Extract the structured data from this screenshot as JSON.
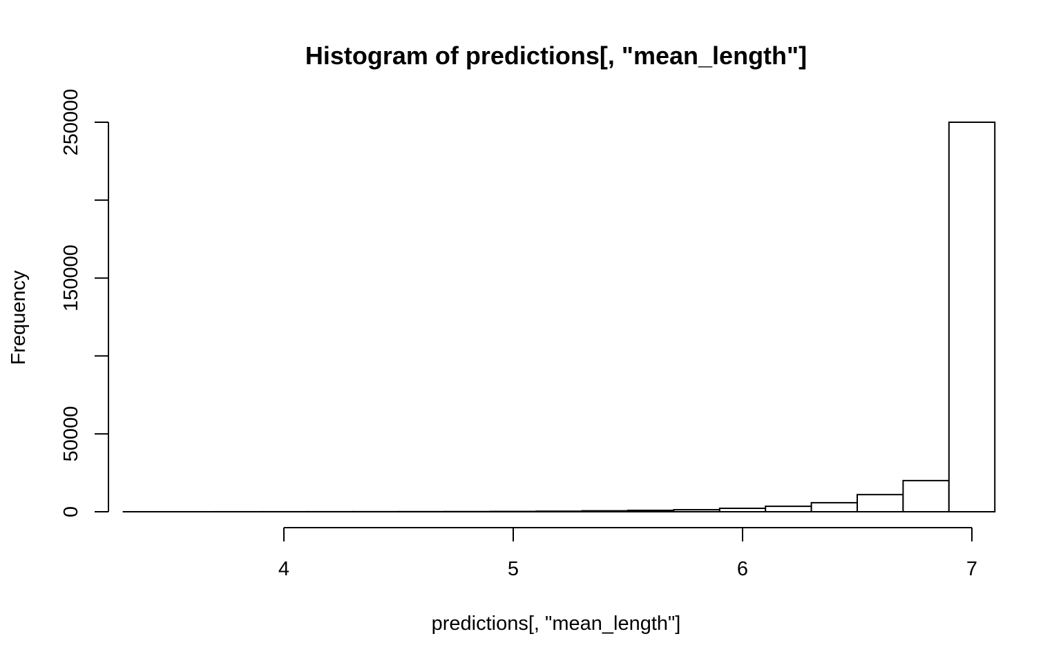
{
  "chart_data": {
    "type": "bar",
    "title": "Histogram of predictions[, \"mean_length\"]",
    "xlabel": "predictions[, \"mean_length\"]",
    "ylabel": "Frequency",
    "xlim": [
      3.4,
      7.0
    ],
    "ylim": [
      0,
      250000
    ],
    "x_ticks": [
      4,
      5,
      6,
      7
    ],
    "y_ticks": [
      0,
      50000,
      100000,
      150000,
      200000,
      250000
    ],
    "y_tick_labels": [
      "0",
      "50000",
      "",
      "150000",
      "",
      "250000"
    ],
    "bin_edges": [
      3.3,
      3.5,
      3.7,
      3.9,
      4.1,
      4.3,
      4.5,
      4.7,
      4.9,
      5.1,
      5.3,
      5.5,
      5.7,
      5.9,
      6.1,
      6.3,
      6.5,
      6.7,
      6.9,
      7.1
    ],
    "values": [
      10,
      10,
      20,
      30,
      40,
      60,
      80,
      120,
      200,
      350,
      600,
      900,
      1300,
      2200,
      3500,
      5800,
      11000,
      20000,
      250000
    ],
    "grid": false,
    "legend": "none"
  }
}
